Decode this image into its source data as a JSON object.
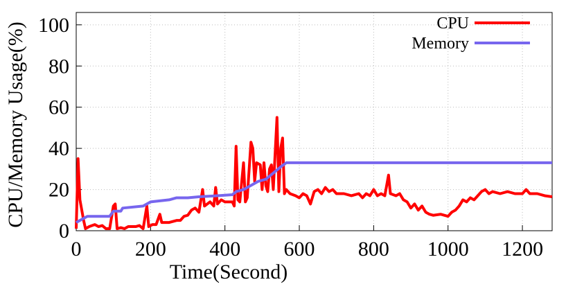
{
  "chart_data": {
    "type": "line",
    "xlabel": "Time(Second)",
    "ylabel": "CPU/Memory Usage(%)",
    "xlim": [
      0,
      1280
    ],
    "ylim": [
      0,
      106
    ],
    "xticks": [
      0,
      200,
      400,
      600,
      800,
      1000,
      1200
    ],
    "yticks": [
      0,
      20,
      40,
      60,
      80,
      100
    ],
    "grid": true,
    "legend": "upper right",
    "series": [
      {
        "name": "CPU",
        "color": "#ff0000",
        "x": [
          0,
          5,
          10,
          20,
          25,
          35,
          50,
          60,
          70,
          80,
          90,
          100,
          105,
          110,
          120,
          130,
          140,
          150,
          160,
          170,
          180,
          190,
          195,
          205,
          215,
          225,
          230,
          250,
          270,
          280,
          290,
          300,
          310,
          320,
          330,
          340,
          345,
          360,
          370,
          375,
          380,
          390,
          400,
          410,
          420,
          425,
          430,
          435,
          440,
          450,
          455,
          460,
          470,
          475,
          480,
          485,
          495,
          500,
          505,
          510,
          515,
          520,
          525,
          530,
          540,
          545,
          550,
          555,
          560,
          565,
          575,
          590,
          600,
          610,
          620,
          630,
          640,
          650,
          660,
          670,
          680,
          690,
          700,
          720,
          740,
          760,
          770,
          780,
          790,
          800,
          810,
          820,
          830,
          840,
          845,
          860,
          870,
          880,
          890,
          900,
          910,
          920,
          930,
          940,
          950,
          960,
          980,
          1000,
          1010,
          1020,
          1030,
          1040,
          1050,
          1060,
          1070,
          1080,
          1090,
          1100,
          1110,
          1120,
          1140,
          1160,
          1180,
          1200,
          1210,
          1220,
          1240,
          1260,
          1280
        ],
        "values": [
          1,
          35,
          15,
          5,
          1,
          2,
          3,
          2,
          2.5,
          1,
          1,
          12,
          13,
          1,
          1.5,
          1,
          2,
          2,
          2,
          2.5,
          1,
          12,
          2,
          3,
          3,
          8,
          4,
          4,
          5,
          5,
          7,
          7.5,
          10,
          11,
          9,
          20,
          12,
          14,
          12,
          21,
          13,
          15,
          14,
          14,
          14,
          12,
          41,
          15,
          14,
          33,
          14,
          16,
          43,
          40,
          24,
          33,
          32,
          20,
          33,
          22,
          19,
          30,
          32,
          20,
          55,
          19,
          40,
          45,
          18,
          20,
          18,
          17,
          16,
          18,
          17,
          13,
          19,
          20,
          18,
          21,
          19,
          20,
          18,
          18,
          17,
          18,
          16,
          18,
          17,
          20,
          17,
          18,
          17,
          27,
          18,
          17,
          18,
          15,
          14,
          11,
          13,
          10,
          12,
          9,
          8,
          7.5,
          8,
          7,
          9,
          10,
          12,
          15,
          14,
          16,
          15,
          17,
          19,
          20,
          18,
          19,
          18,
          19,
          18,
          18,
          20,
          18,
          18,
          17,
          16.5
        ]
      },
      {
        "name": "Memory",
        "color": "#7766ee",
        "x": [
          0,
          20,
          30,
          90,
          100,
          120,
          125,
          180,
          200,
          250,
          270,
          300,
          330,
          380,
          420,
          430,
          450,
          470,
          490,
          510,
          530,
          550,
          565,
          600,
          800,
          1280
        ],
        "values": [
          4,
          6,
          7,
          7,
          9.5,
          9.5,
          11,
          12,
          14,
          15,
          16,
          16,
          16.5,
          17,
          17.5,
          19,
          20,
          22,
          24,
          25,
          28,
          31,
          33,
          33,
          33,
          33
        ]
      }
    ]
  }
}
